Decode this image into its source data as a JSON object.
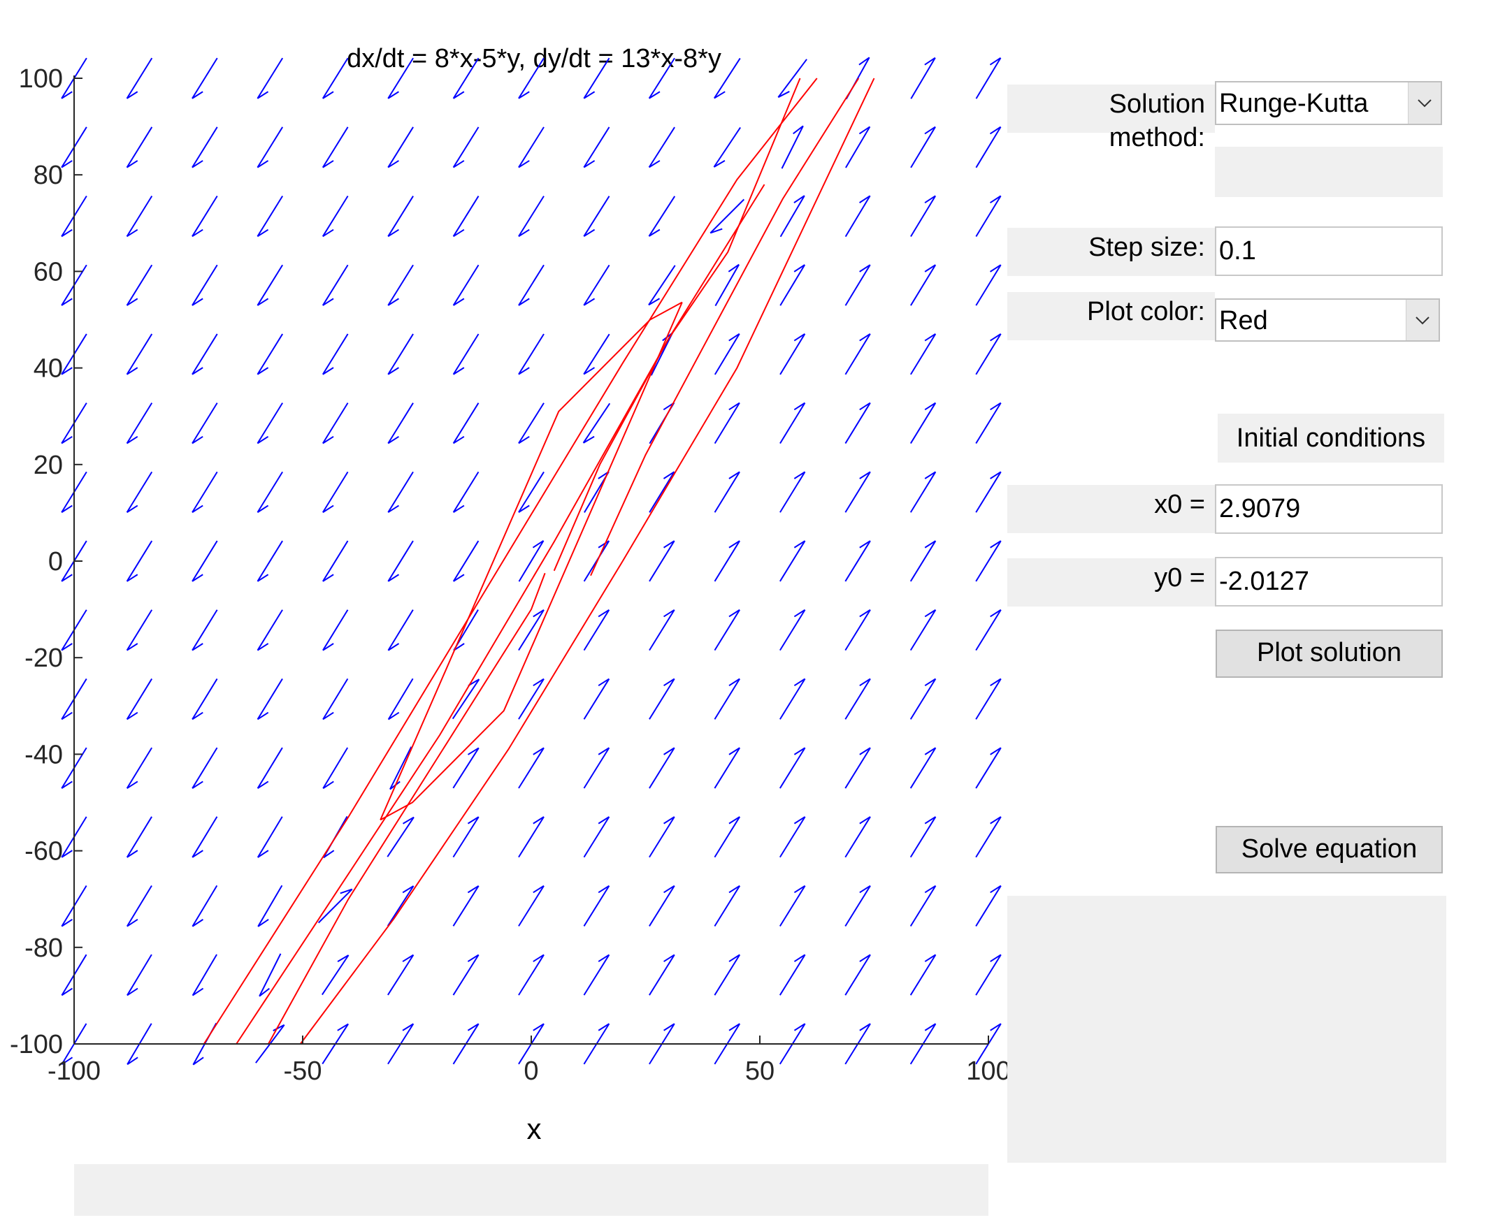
{
  "plot": {
    "title": "dx/dt = 8*x-5*y, dy/dt = 13*x-8*y",
    "xlabel": "x",
    "x_ticks": [
      "-100",
      "-50",
      "0",
      "50",
      "100"
    ],
    "y_ticks": [
      "100",
      "80",
      "60",
      "40",
      "20",
      "0",
      "-20",
      "-40",
      "-60",
      "-80",
      "-100"
    ],
    "field_color": "#0000ff",
    "solution_color": "#ff0000"
  },
  "chart_data": {
    "type": "line",
    "title": "dx/dt = 8*x-5*y, dy/dt = 13*x-8*y",
    "xlabel": "x",
    "ylabel": "",
    "xlim": [
      -100,
      100
    ],
    "ylim": [
      -100,
      100
    ],
    "system": {
      "dxdt": [
        8,
        -5
      ],
      "dydt": [
        13,
        -8
      ]
    },
    "grid": false,
    "series": [
      {
        "x": [
          -71.6,
          -40,
          -10,
          20,
          45,
          62.5
        ],
        "y": [
          -100,
          -53,
          -6,
          41,
          79,
          100
        ]
      },
      {
        "x": [
          -64.5,
          -45,
          -20,
          5,
          30,
          51
        ],
        "y": [
          -100,
          -72,
          -36,
          4,
          46,
          78
        ]
      },
      {
        "x": [
          -50.5,
          -30,
          -5,
          20,
          45,
          75
        ],
        "y": [
          -100,
          -74,
          -39,
          0,
          40,
          100
        ]
      },
      {
        "x": [
          -33,
          -26,
          -6,
          33
        ],
        "y": [
          -53.6,
          -50,
          -31,
          53.6
        ]
      },
      {
        "x": [
          33,
          26,
          6,
          -33
        ],
        "y": [
          53.6,
          50,
          31,
          -53.6
        ]
      },
      {
        "x": [
          5,
          15,
          30,
          43,
          58.8
        ],
        "y": [
          -2,
          20,
          46,
          64,
          100
        ]
      },
      {
        "x": [
          13,
          25,
          38,
          55,
          71.6
        ],
        "y": [
          -3,
          22,
          45,
          75,
          100
        ]
      },
      {
        "x": [
          -57.5,
          -40,
          -20,
          0,
          3
        ],
        "y": [
          -100,
          -70,
          -40,
          -10,
          -2.5
        ]
      }
    ]
  },
  "controls": {
    "method_label": "Solution method:",
    "method_value": "Runge-Kutta",
    "step_label": "Step size:",
    "step_value": "0.1",
    "color_label": "Plot color:",
    "color_value": "Red",
    "initial_conditions": "Initial conditions",
    "x0_label": "x0 =",
    "x0_value": "2.9079",
    "y0_label": "y0 =",
    "y0_value": "-2.0127",
    "plot_button": "Plot solution",
    "solve_button": "Solve equation"
  }
}
